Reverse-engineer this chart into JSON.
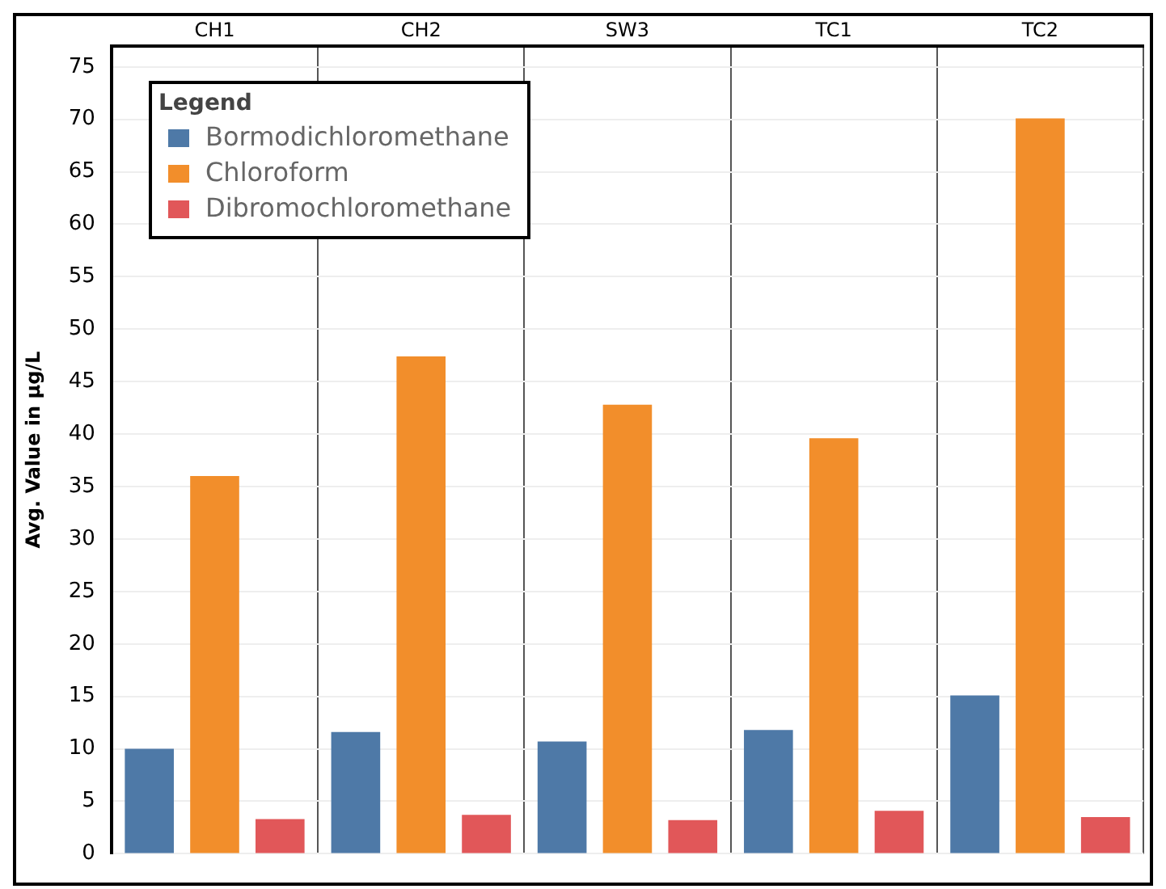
{
  "chart_data": {
    "type": "bar",
    "ylabel": "Avg. Value in µg/L",
    "legend_title": "Legend",
    "categories": [
      "CH1",
      "CH2",
      "SW3",
      "TC1",
      "TC2"
    ],
    "series": [
      {
        "name": "Bormodichloromethane",
        "color": "#4e79a7",
        "values": [
          10,
          11.6,
          10.7,
          11.8,
          15.1
        ]
      },
      {
        "name": "Chloroform",
        "color": "#f28e2b",
        "values": [
          36,
          47.4,
          42.8,
          39.6,
          70.1
        ]
      },
      {
        "name": "Dibromochloromethane",
        "color": "#e15759",
        "values": [
          3.3,
          3.7,
          3.2,
          4.1,
          3.5
        ]
      }
    ],
    "ylim": [
      0,
      77
    ],
    "yticks": [
      0,
      5,
      10,
      15,
      20,
      25,
      30,
      35,
      40,
      45,
      50,
      55,
      60,
      65,
      70,
      75
    ],
    "grid": true,
    "legend": "top left"
  }
}
